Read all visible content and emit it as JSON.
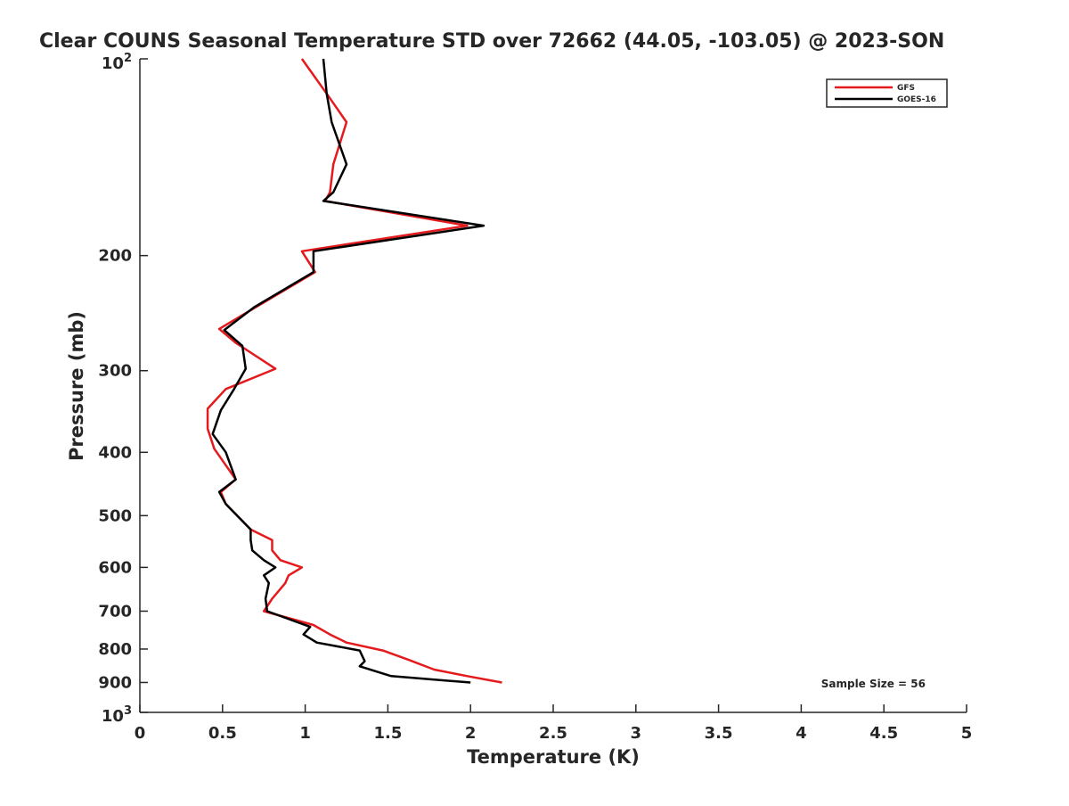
{
  "chart_data": {
    "type": "line",
    "title": "Clear COUNS Seasonal Temperature STD over 72662 (44.05, -103.05) @ 2023-SON",
    "xlabel": "Temperature (K)",
    "ylabel": "Pressure (mb)",
    "xlim": [
      0,
      5
    ],
    "ylim": [
      100,
      1000
    ],
    "yscale": "log",
    "y_reversed": true,
    "xticks": [
      0,
      0.5,
      1,
      1.5,
      2,
      2.5,
      3,
      3.5,
      4,
      4.5,
      5
    ],
    "xtick_labels": [
      "0",
      "0.5",
      "1",
      "1.5",
      "2",
      "2.5",
      "3",
      "3.5",
      "4",
      "4.5",
      "5"
    ],
    "yticks": [
      200,
      300,
      400,
      500,
      600,
      700,
      800,
      900
    ],
    "ytick_labels": [
      "200",
      "300",
      "400",
      "500",
      "600",
      "700",
      "800",
      "900"
    ],
    "ytick_end_labels": {
      "top_base": "10",
      "top_exp": "2",
      "bottom_base": "10",
      "bottom_exp": "3"
    },
    "annotation": "Sample Size = 56",
    "legend_position": "top-right",
    "series": [
      {
        "name": "GFS",
        "color": "#e41a1c",
        "x": [
          0.98,
          1.14,
          1.25,
          1.17,
          1.15,
          1.12,
          1.98,
          0.98,
          1.06,
          0.7,
          0.48,
          0.58,
          0.82,
          0.52,
          0.41,
          0.41,
          0.45,
          0.58,
          0.49,
          0.52,
          0.67,
          0.8,
          0.8,
          0.85,
          0.98,
          0.9,
          0.88,
          0.8,
          0.75,
          1.05,
          1.15,
          1.25,
          1.47,
          1.62,
          1.78,
          1.98,
          2.19
        ],
        "y": [
          100,
          114,
          125,
          145,
          160,
          165,
          180,
          197,
          212,
          240,
          259,
          272,
          298,
          320,
          343,
          368,
          395,
          440,
          460,
          480,
          525,
          545,
          565,
          585,
          600,
          617,
          634,
          670,
          700,
          735,
          760,
          782,
          804,
          830,
          860,
          880,
          900
        ]
      },
      {
        "name": "GOES-16",
        "color": "#000000",
        "x": [
          1.11,
          1.13,
          1.16,
          1.25,
          1.17,
          1.11,
          2.08,
          1.05,
          1.05,
          0.69,
          0.51,
          0.62,
          0.64,
          0.57,
          0.49,
          0.44,
          0.52,
          0.58,
          0.48,
          0.52,
          0.67,
          0.67,
          0.68,
          0.75,
          0.82,
          0.75,
          0.78,
          0.76,
          0.77,
          1.03,
          0.99,
          1.07,
          1.33,
          1.36,
          1.33,
          1.52,
          2.0
        ],
        "y": [
          100,
          113,
          125,
          145,
          160,
          165,
          180,
          197,
          212,
          240,
          260,
          275,
          298,
          320,
          345,
          375,
          400,
          440,
          460,
          480,
          525,
          545,
          565,
          585,
          600,
          617,
          634,
          670,
          700,
          740,
          760,
          782,
          804,
          835,
          850,
          880,
          900
        ]
      }
    ]
  }
}
